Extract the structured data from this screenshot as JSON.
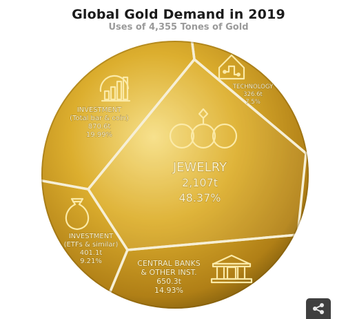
{
  "title": "Global Gold Demand in 2019",
  "subtitle": "Uses of 4,355 Tones of Gold",
  "colors": {
    "gold_light": "#f3d873",
    "gold_mid": "#d9a928",
    "gold_dark": "#8a6410",
    "separator": "#f6efd6"
  },
  "share_icon": "share-icon",
  "chart_data": {
    "type": "pie",
    "title": "Global Gold Demand in 2019",
    "subtitle": "Uses of 4,355 Tones of Gold",
    "unit": "tonnes",
    "total": 4355,
    "slices": [
      {
        "label_lines": [
          "JEWELRY"
        ],
        "value_text": "2,107t",
        "percent_text": "48.37%",
        "value": 2107,
        "percent": 48.37,
        "icon": "rings-icon"
      },
      {
        "label_lines": [
          "CENTRAL BANKS",
          "& OTHER INST."
        ],
        "value_text": "650.3t",
        "percent_text": "14.93%",
        "value": 650.3,
        "percent": 14.93,
        "icon": "bank-icon"
      },
      {
        "label_lines": [
          "INVESTMENT",
          "(ETFs & similar)"
        ],
        "value_text": "401.1t",
        "percent_text": "9.21%",
        "value": 401.1,
        "percent": 9.21,
        "icon": "money-bag-icon"
      },
      {
        "label_lines": [
          "INVESTMENT",
          "(Total bar & coin)"
        ],
        "value_text": "870.6t",
        "percent_text": "19.99%",
        "value": 870.6,
        "percent": 19.99,
        "icon": "bar-chart-icon"
      },
      {
        "label_lines": [
          "TECHNOLOGY"
        ],
        "value_text": "326.6t",
        "percent_text": "7.5%",
        "value": 326.6,
        "percent": 7.5,
        "icon": "circuit-house-icon"
      }
    ]
  }
}
